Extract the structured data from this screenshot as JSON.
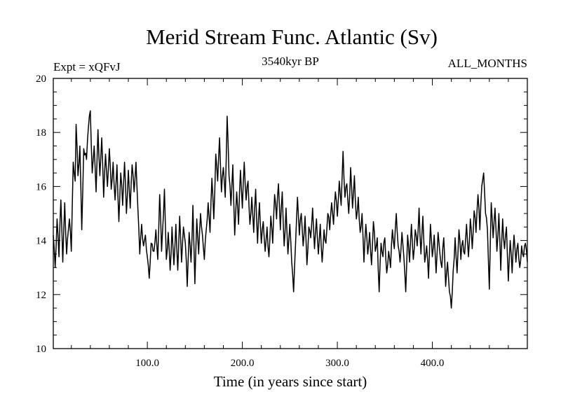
{
  "chart_data": {
    "type": "line",
    "title": "Merid Stream Func. Atlantic (Sv)",
    "subtitle_left": "Expt = xQFvJ",
    "subtitle_center": "3540kyr BP",
    "subtitle_right": "ALL_MONTHS",
    "xlabel": "Time (in years since start)",
    "ylabel": "",
    "xlim": [
      1,
      500
    ],
    "ylim": [
      10,
      20
    ],
    "x_ticks": [
      100,
      200,
      300,
      400
    ],
    "x_tick_labels": [
      "100.0",
      "200.0",
      "300.0",
      "400.0"
    ],
    "y_ticks": [
      10,
      12,
      14,
      16,
      18,
      20
    ],
    "y_tick_labels": [
      "10",
      "12",
      "14",
      "16",
      "18",
      "20"
    ],
    "grid": false,
    "line_color": "#000000",
    "series": [
      {
        "name": "Merid Stream Func. Atlantic",
        "anchors": [
          [
            1,
            14.2
          ],
          [
            3,
            13.0
          ],
          [
            5,
            14.8
          ],
          [
            7,
            13.4
          ],
          [
            9,
            15.5
          ],
          [
            11,
            13.2
          ],
          [
            13,
            15.4
          ],
          [
            15,
            13.5
          ],
          [
            18,
            14.8
          ],
          [
            20,
            13.6
          ],
          [
            22,
            16.9
          ],
          [
            24,
            16.2
          ],
          [
            25,
            18.3
          ],
          [
            27,
            16.4
          ],
          [
            29,
            17.5
          ],
          [
            31,
            14.4
          ],
          [
            33,
            17.4
          ],
          [
            36,
            17.0
          ],
          [
            38,
            18.2
          ],
          [
            40,
            18.8
          ],
          [
            42,
            16.5
          ],
          [
            44,
            17.5
          ],
          [
            46,
            15.8
          ],
          [
            48,
            18.1
          ],
          [
            50,
            16.4
          ],
          [
            52,
            17.8
          ],
          [
            54,
            15.6
          ],
          [
            56,
            17.2
          ],
          [
            58,
            16.0
          ],
          [
            60,
            17.4
          ],
          [
            62,
            15.9
          ],
          [
            64,
            16.9
          ],
          [
            66,
            15.5
          ],
          [
            68,
            16.8
          ],
          [
            70,
            14.7
          ],
          [
            72,
            16.5
          ],
          [
            74,
            15.3
          ],
          [
            76,
            16.9
          ],
          [
            78,
            15.0
          ],
          [
            80,
            16.6
          ],
          [
            82,
            15.2
          ],
          [
            84,
            16.8
          ],
          [
            86,
            15.8
          ],
          [
            88,
            16.9
          ],
          [
            90,
            15.2
          ],
          [
            92,
            13.5
          ],
          [
            94,
            14.6
          ],
          [
            96,
            13.8
          ],
          [
            98,
            14.2
          ],
          [
            100,
            13.4
          ],
          [
            102,
            12.6
          ],
          [
            104,
            13.9
          ],
          [
            107,
            13.6
          ],
          [
            109,
            14.4
          ],
          [
            111,
            13.3
          ],
          [
            113,
            15.7
          ],
          [
            115,
            13.6
          ],
          [
            118,
            15.9
          ],
          [
            120,
            13.3
          ],
          [
            122,
            14.3
          ],
          [
            124,
            12.9
          ],
          [
            126,
            14.5
          ],
          [
            128,
            13.1
          ],
          [
            130,
            14.6
          ],
          [
            132,
            12.9
          ],
          [
            134,
            14.9
          ],
          [
            136,
            13.2
          ],
          [
            138,
            14.5
          ],
          [
            140,
            13.9
          ],
          [
            142,
            12.3
          ],
          [
            144,
            14.3
          ],
          [
            146,
            13.2
          ],
          [
            148,
            15.3
          ],
          [
            150,
            12.4
          ],
          [
            152,
            14.8
          ],
          [
            154,
            13.5
          ],
          [
            156,
            15.0
          ],
          [
            158,
            14.2
          ],
          [
            160,
            13.3
          ],
          [
            162,
            14.4
          ],
          [
            164,
            15.4
          ],
          [
            166,
            14.3
          ],
          [
            168,
            16.3
          ],
          [
            170,
            14.8
          ],
          [
            172,
            17.2
          ],
          [
            174,
            16.2
          ],
          [
            176,
            17.8
          ],
          [
            178,
            15.8
          ],
          [
            180,
            16.7
          ],
          [
            182,
            15.6
          ],
          [
            184,
            18.6
          ],
          [
            186,
            16.4
          ],
          [
            188,
            15.3
          ],
          [
            190,
            16.8
          ],
          [
            192,
            14.2
          ],
          [
            194,
            15.8
          ],
          [
            196,
            14.6
          ],
          [
            198,
            16.6
          ],
          [
            200,
            15.2
          ],
          [
            202,
            16.9
          ],
          [
            204,
            15.5
          ],
          [
            206,
            16.2
          ],
          [
            208,
            14.6
          ],
          [
            210,
            15.6
          ],
          [
            212,
            14.3
          ],
          [
            214,
            15.9
          ],
          [
            216,
            13.9
          ],
          [
            218,
            15.4
          ],
          [
            220,
            13.9
          ],
          [
            222,
            14.7
          ],
          [
            224,
            13.6
          ],
          [
            226,
            14.5
          ],
          [
            228,
            13.4
          ],
          [
            230,
            14.9
          ],
          [
            232,
            13.9
          ],
          [
            234,
            15.7
          ],
          [
            236,
            14.8
          ],
          [
            238,
            16.1
          ],
          [
            240,
            14.4
          ],
          [
            242,
            15.8
          ],
          [
            244,
            13.8
          ],
          [
            246,
            15.2
          ],
          [
            248,
            13.5
          ],
          [
            250,
            14.6
          ],
          [
            252,
            13.2
          ],
          [
            254,
            12.1
          ],
          [
            256,
            13.9
          ],
          [
            258,
            15.6
          ],
          [
            260,
            14.2
          ],
          [
            262,
            15.0
          ],
          [
            264,
            13.8
          ],
          [
            266,
            14.9
          ],
          [
            268,
            13.1
          ],
          [
            270,
            14.5
          ],
          [
            272,
            14.1
          ],
          [
            274,
            15.2
          ],
          [
            276,
            13.7
          ],
          [
            278,
            14.8
          ],
          [
            280,
            13.5
          ],
          [
            282,
            14.6
          ],
          [
            284,
            13.2
          ],
          [
            286,
            14.4
          ],
          [
            288,
            13.9
          ],
          [
            290,
            15.0
          ],
          [
            292,
            14.4
          ],
          [
            294,
            15.4
          ],
          [
            296,
            14.6
          ],
          [
            298,
            15.8
          ],
          [
            300,
            14.9
          ],
          [
            302,
            16.2
          ],
          [
            304,
            15.3
          ],
          [
            306,
            17.3
          ],
          [
            308,
            15.6
          ],
          [
            310,
            16.1
          ],
          [
            312,
            15.0
          ],
          [
            314,
            16.7
          ],
          [
            316,
            15.2
          ],
          [
            318,
            16.4
          ],
          [
            320,
            14.8
          ],
          [
            322,
            15.6
          ],
          [
            324,
            14.3
          ],
          [
            326,
            15.0
          ],
          [
            328,
            13.2
          ],
          [
            330,
            14.6
          ],
          [
            332,
            13.5
          ],
          [
            334,
            14.3
          ],
          [
            336,
            13.1
          ],
          [
            338,
            14.7
          ],
          [
            340,
            13.6
          ],
          [
            342,
            14.1
          ],
          [
            344,
            12.1
          ],
          [
            346,
            13.9
          ],
          [
            348,
            13.4
          ],
          [
            350,
            14.1
          ],
          [
            352,
            12.8
          ],
          [
            354,
            13.6
          ],
          [
            356,
            13.0
          ],
          [
            358,
            14.4
          ],
          [
            360,
            13.7
          ],
          [
            362,
            15.0
          ],
          [
            364,
            13.8
          ],
          [
            366,
            13.2
          ],
          [
            368,
            14.3
          ],
          [
            370,
            13.4
          ],
          [
            372,
            12.1
          ],
          [
            374,
            14.2
          ],
          [
            376,
            13.2
          ],
          [
            378,
            14.6
          ],
          [
            380,
            13.3
          ],
          [
            382,
            14.4
          ],
          [
            384,
            13.8
          ],
          [
            386,
            15.2
          ],
          [
            388,
            13.5
          ],
          [
            390,
            14.9
          ],
          [
            392,
            13.2
          ],
          [
            394,
            13.8
          ],
          [
            396,
            12.6
          ],
          [
            398,
            14.6
          ],
          [
            400,
            13.4
          ],
          [
            402,
            14.2
          ],
          [
            404,
            12.8
          ],
          [
            406,
            14.3
          ],
          [
            408,
            13.5
          ],
          [
            410,
            13.0
          ],
          [
            412,
            14.1
          ],
          [
            414,
            12.3
          ],
          [
            416,
            13.2
          ],
          [
            418,
            12.1
          ],
          [
            420,
            11.5
          ],
          [
            422,
            12.9
          ],
          [
            424,
            14.1
          ],
          [
            426,
            12.8
          ],
          [
            428,
            14.4
          ],
          [
            430,
            13.3
          ],
          [
            432,
            14.0
          ],
          [
            434,
            13.5
          ],
          [
            436,
            14.6
          ],
          [
            438,
            13.4
          ],
          [
            440,
            14.8
          ],
          [
            442,
            13.7
          ],
          [
            444,
            15.1
          ],
          [
            446,
            14.3
          ],
          [
            448,
            15.7
          ],
          [
            450,
            14.4
          ],
          [
            452,
            16.0
          ],
          [
            454,
            16.5
          ],
          [
            456,
            15.0
          ],
          [
            458,
            14.4
          ],
          [
            460,
            12.2
          ],
          [
            462,
            15.4
          ],
          [
            464,
            14.1
          ],
          [
            466,
            15.2
          ],
          [
            468,
            13.6
          ],
          [
            470,
            15.0
          ],
          [
            472,
            12.9
          ],
          [
            474,
            14.8
          ],
          [
            476,
            13.7
          ],
          [
            478,
            14.5
          ],
          [
            480,
            12.5
          ],
          [
            482,
            14.0
          ],
          [
            484,
            12.8
          ],
          [
            486,
            14.2
          ],
          [
            488,
            13.2
          ],
          [
            490,
            13.9
          ],
          [
            492,
            13.0
          ],
          [
            494,
            13.8
          ],
          [
            496,
            13.4
          ],
          [
            498,
            13.9
          ],
          [
            500,
            13.2
          ]
        ]
      }
    ]
  }
}
